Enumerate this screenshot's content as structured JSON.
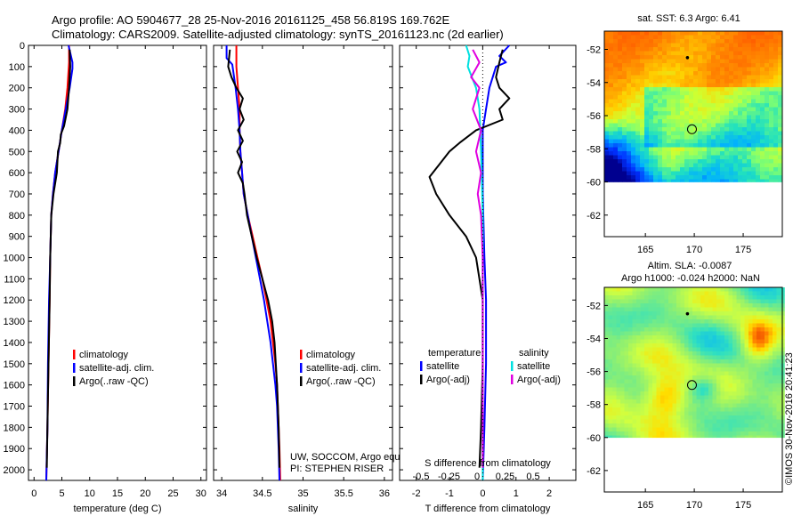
{
  "title_line1": "Argo profile: AO 5904677_28 25-Nov-2016 20161125_458 56.819S 169.762E",
  "title_line2": "Climatology: CARS2009. Satellite-adjusted climatology: synTS_20161123.nc (2d earlier)",
  "credit": "©IMOS 30-Nov-2016 20:41:23",
  "chart_data": [
    {
      "type": "line",
      "id": "temperature",
      "xlabel": "temperature (deg C)",
      "xlim": [
        -1,
        31
      ],
      "xticks": [
        0,
        5,
        10,
        15,
        20,
        25,
        30
      ],
      "ylim": [
        2050,
        0
      ],
      "yticks": [
        0,
        100,
        200,
        300,
        400,
        500,
        600,
        700,
        800,
        900,
        1000,
        1100,
        1200,
        1300,
        1400,
        1500,
        1600,
        1700,
        1800,
        1900,
        2000
      ],
      "legend": [
        "climatology",
        "satellite-adj. clim.",
        "Argo(..raw -QC)"
      ],
      "series": [
        {
          "name": "climatology",
          "color": "#ff0000",
          "points": [
            [
              6.3,
              0
            ],
            [
              6.3,
              80
            ],
            [
              6.0,
              200
            ],
            [
              5.6,
              300
            ],
            [
              5.0,
              400
            ],
            [
              4.4,
              500
            ],
            [
              3.8,
              600
            ],
            [
              3.4,
              700
            ],
            [
              3.1,
              800
            ],
            [
              2.9,
              1000
            ],
            [
              2.8,
              1200
            ],
            [
              2.6,
              1500
            ],
            [
              2.4,
              1800
            ],
            [
              2.2,
              2050
            ]
          ]
        },
        {
          "name": "satellite-adj. clim.",
          "color": "#0000ff",
          "points": [
            [
              6.2,
              0
            ],
            [
              6.9,
              80
            ],
            [
              6.9,
              110
            ],
            [
              6.4,
              200
            ],
            [
              5.7,
              300
            ],
            [
              5.0,
              400
            ],
            [
              4.4,
              500
            ],
            [
              3.8,
              600
            ],
            [
              3.4,
              700
            ],
            [
              3.1,
              800
            ],
            [
              2.9,
              1000
            ],
            [
              2.7,
              1200
            ],
            [
              2.5,
              1500
            ],
            [
              2.4,
              1800
            ],
            [
              2.2,
              2050
            ]
          ]
        },
        {
          "name": "Argo(..raw -QC)",
          "color": "#000000",
          "points": [
            [
              6.4,
              20
            ],
            [
              6.5,
              100
            ],
            [
              6.3,
              200
            ],
            [
              6.0,
              300
            ],
            [
              5.4,
              380
            ],
            [
              4.8,
              420
            ],
            [
              4.7,
              460
            ],
            [
              4.3,
              500
            ],
            [
              4.1,
              600
            ],
            [
              3.5,
              700
            ],
            [
              3.1,
              800
            ],
            [
              2.9,
              1000
            ],
            [
              2.8,
              1200
            ],
            [
              2.6,
              1500
            ],
            [
              2.4,
              1800
            ],
            [
              2.3,
              1990
            ]
          ]
        }
      ]
    },
    {
      "type": "line",
      "id": "salinity",
      "xlabel": "salinity",
      "xlim": [
        33.9,
        36.1
      ],
      "xticks": [
        34,
        34.5,
        35,
        35.5,
        36
      ],
      "ylim": [
        2050,
        0
      ],
      "legend": [
        "climatology",
        "satellite-adj. clim.",
        "Argo(..raw -QC)"
      ],
      "annotation": [
        "UW, SOCCOM, Argo equivalent",
        "PI: STEPHEN RISER"
      ],
      "series": [
        {
          "name": "climatology",
          "color": "#ff0000",
          "points": [
            [
              34.18,
              0
            ],
            [
              34.18,
              100
            ],
            [
              34.2,
              200
            ],
            [
              34.22,
              300
            ],
            [
              34.22,
              400
            ],
            [
              34.23,
              500
            ],
            [
              34.25,
              600
            ],
            [
              34.27,
              700
            ],
            [
              34.32,
              800
            ],
            [
              34.38,
              900
            ],
            [
              34.44,
              1000
            ],
            [
              34.5,
              1100
            ],
            [
              34.55,
              1200
            ],
            [
              34.6,
              1300
            ],
            [
              34.63,
              1400
            ],
            [
              34.66,
              1500
            ],
            [
              34.68,
              1600
            ],
            [
              34.69,
              1700
            ],
            [
              34.7,
              1800
            ],
            [
              34.71,
              1900
            ],
            [
              34.72,
              2050
            ]
          ]
        },
        {
          "name": "satellite-adj. clim.",
          "color": "#0000ff",
          "points": [
            [
              34.06,
              0
            ],
            [
              34.06,
              60
            ],
            [
              34.13,
              90
            ],
            [
              34.17,
              200
            ],
            [
              34.2,
              300
            ],
            [
              34.22,
              400
            ],
            [
              34.23,
              500
            ],
            [
              34.25,
              600
            ],
            [
              34.27,
              700
            ],
            [
              34.32,
              800
            ],
            [
              34.37,
              900
            ],
            [
              34.42,
              1000
            ],
            [
              34.47,
              1100
            ],
            [
              34.52,
              1200
            ],
            [
              34.56,
              1300
            ],
            [
              34.6,
              1400
            ],
            [
              34.63,
              1500
            ],
            [
              34.66,
              1600
            ],
            [
              34.68,
              1700
            ],
            [
              34.69,
              1800
            ],
            [
              34.7,
              1900
            ],
            [
              34.71,
              2050
            ]
          ]
        },
        {
          "name": "Argo(..raw -QC)",
          "color": "#000000",
          "points": [
            [
              34.1,
              20
            ],
            [
              34.08,
              100
            ],
            [
              34.12,
              150
            ],
            [
              34.18,
              200
            ],
            [
              34.26,
              250
            ],
            [
              34.22,
              300
            ],
            [
              34.27,
              350
            ],
            [
              34.2,
              400
            ],
            [
              34.26,
              450
            ],
            [
              34.19,
              500
            ],
            [
              34.25,
              550
            ],
            [
              34.2,
              600
            ],
            [
              34.26,
              650
            ],
            [
              34.28,
              700
            ],
            [
              34.31,
              800
            ],
            [
              34.37,
              900
            ],
            [
              34.43,
              1000
            ],
            [
              34.5,
              1100
            ],
            [
              34.57,
              1200
            ],
            [
              34.62,
              1300
            ],
            [
              34.65,
              1400
            ],
            [
              34.68,
              1600
            ],
            [
              34.7,
              1800
            ],
            [
              34.71,
              1990
            ]
          ]
        }
      ]
    },
    {
      "type": "line",
      "id": "difference",
      "xlabel": "T difference from climatology",
      "xlabel_top": "S difference from climatology",
      "xlim": [
        -2.5,
        2.8
      ],
      "xticks": [
        -2,
        -1,
        0,
        1,
        2
      ],
      "xticks_s_labels": [
        "-0.5",
        "-0.25",
        "0",
        "0.25",
        "0.5"
      ],
      "ylim": [
        2050,
        0
      ],
      "legend_temperature_title": "temperature",
      "legend_salinity_title": "salinity",
      "legend_temperature": [
        "satellite",
        "Argo(-adj)"
      ],
      "legend_salinity": [
        "satellite",
        "Argo(-adj)"
      ],
      "series": [
        {
          "name": "temperature satellite",
          "color": "#0000ff",
          "points": [
            [
              0.8,
              0
            ],
            [
              0.5,
              50
            ],
            [
              0.7,
              80
            ],
            [
              0.4,
              100
            ],
            [
              0.2,
              200
            ],
            [
              0.1,
              300
            ],
            [
              0,
              400
            ],
            [
              0,
              500
            ],
            [
              0,
              700
            ],
            [
              0.05,
              1000
            ],
            [
              0.1,
              1200
            ],
            [
              0.1,
              1500
            ],
            [
              0.05,
              1800
            ],
            [
              0,
              2050
            ]
          ]
        },
        {
          "name": "temperature Argo(-adj)",
          "color": "#000000",
          "points": [
            [
              0.6,
              20
            ],
            [
              0.5,
              80
            ],
            [
              0.4,
              150
            ],
            [
              0.5,
              200
            ],
            [
              0.8,
              250
            ],
            [
              0.5,
              300
            ],
            [
              0.6,
              350
            ],
            [
              -0.2,
              400
            ],
            [
              -0.7,
              460
            ],
            [
              -1.0,
              500
            ],
            [
              -1.3,
              560
            ],
            [
              -1.6,
              620
            ],
            [
              -1.4,
              700
            ],
            [
              -1.0,
              800
            ],
            [
              -0.5,
              900
            ],
            [
              -0.2,
              1000
            ],
            [
              0,
              1200
            ],
            [
              0,
              1500
            ],
            [
              -0.05,
              1800
            ],
            [
              -0.1,
              1990
            ]
          ]
        },
        {
          "name": "salinity satellite",
          "color": "#00e0e0",
          "points": [
            [
              -0.5,
              0
            ],
            [
              -0.4,
              50
            ],
            [
              -0.45,
              100
            ],
            [
              -0.2,
              200
            ],
            [
              -0.1,
              300
            ],
            [
              -0.05,
              500
            ],
            [
              0,
              800
            ],
            [
              0,
              1200
            ],
            [
              0,
              1600
            ],
            [
              0,
              2050
            ]
          ]
        },
        {
          "name": "salinity Argo(-adj)",
          "color": "#e000e0",
          "points": [
            [
              -0.3,
              20
            ],
            [
              -0.1,
              80
            ],
            [
              -0.35,
              150
            ],
            [
              -0.1,
              200
            ],
            [
              -0.3,
              300
            ],
            [
              -0.05,
              400
            ],
            [
              -0.2,
              500
            ],
            [
              -0.05,
              600
            ],
            [
              -0.15,
              700
            ],
            [
              -0.05,
              800
            ],
            [
              0,
              1000
            ],
            [
              0,
              1500
            ],
            [
              0,
              1990
            ]
          ]
        }
      ]
    },
    {
      "type": "heatmap",
      "id": "sst_map",
      "title": "sat. SST: 6.3 Argo: 6.41",
      "xticks": [
        165,
        170,
        175
      ],
      "yticks": [
        -52,
        -54,
        -56,
        -58,
        -60,
        -62
      ],
      "xlim": [
        160.8,
        179
      ],
      "ylim": [
        -63.3,
        -50.9
      ],
      "data_lat_range": [
        -60,
        -50.9
      ],
      "argo_position": [
        169.762,
        -56.819
      ],
      "previous_position": [
        169.3,
        -52.5
      ]
    },
    {
      "type": "heatmap",
      "id": "sla_map",
      "title_line1": "Altim. SLA: -0.0087",
      "title_line2": "Argo h1000: -0.024 h2000: NaN",
      "xticks": [
        165,
        170,
        175
      ],
      "yticks": [
        -52,
        -54,
        -56,
        -58,
        -60,
        -62
      ],
      "xlim": [
        160.8,
        179
      ],
      "ylim": [
        -63.3,
        -50.9
      ],
      "data_lat_range": [
        -60,
        -50.9
      ],
      "argo_position": [
        169.762,
        -56.819
      ],
      "previous_position": [
        169.3,
        -52.5
      ]
    }
  ]
}
